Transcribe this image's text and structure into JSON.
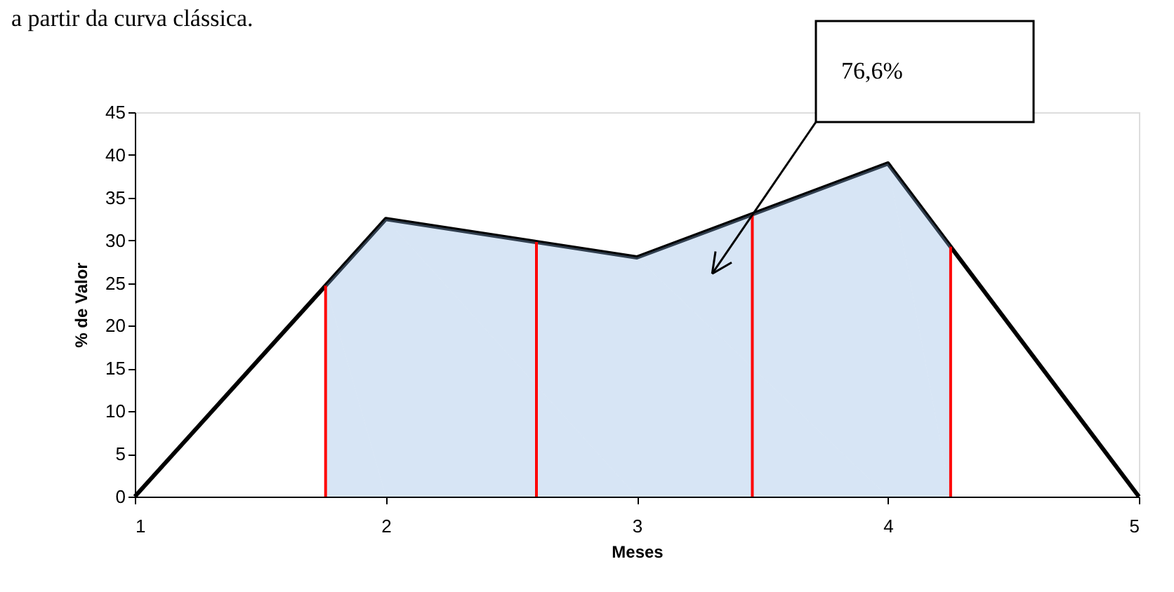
{
  "chart_data": {
    "type": "line",
    "title": "a partir da curva clássica.",
    "xlabel": "Meses",
    "ylabel": "% de Valor",
    "x": [
      1,
      2,
      3,
      4,
      5
    ],
    "series": [
      {
        "color": "#000000",
        "values": [
          0,
          32.5,
          28,
          39,
          0
        ]
      },
      {
        "type": "area",
        "color": "#8db4e2",
        "x": [
          1.76,
          2,
          3,
          4,
          4.25
        ],
        "values": [
          24.7,
          32.5,
          28,
          39,
          29.3
        ]
      }
    ],
    "ref_lines": [
      {
        "axis": "x",
        "value": 1.76,
        "color": "#ff0000"
      },
      {
        "axis": "x",
        "value": 2.6,
        "color": "#ff0000"
      },
      {
        "axis": "x",
        "value": 3.46,
        "color": "#ff0000"
      },
      {
        "axis": "x",
        "value": 4.25,
        "color": "#ff0000"
      }
    ],
    "annotations": [
      "76,6%"
    ],
    "xlim": [
      1,
      5
    ],
    "xticks": [
      1,
      2,
      3,
      4,
      5
    ],
    "ylim": [
      0,
      45
    ],
    "yticks": [
      0,
      5,
      10,
      15,
      20,
      25,
      30,
      35,
      40,
      45
    ],
    "grid": false,
    "marker": "none"
  }
}
